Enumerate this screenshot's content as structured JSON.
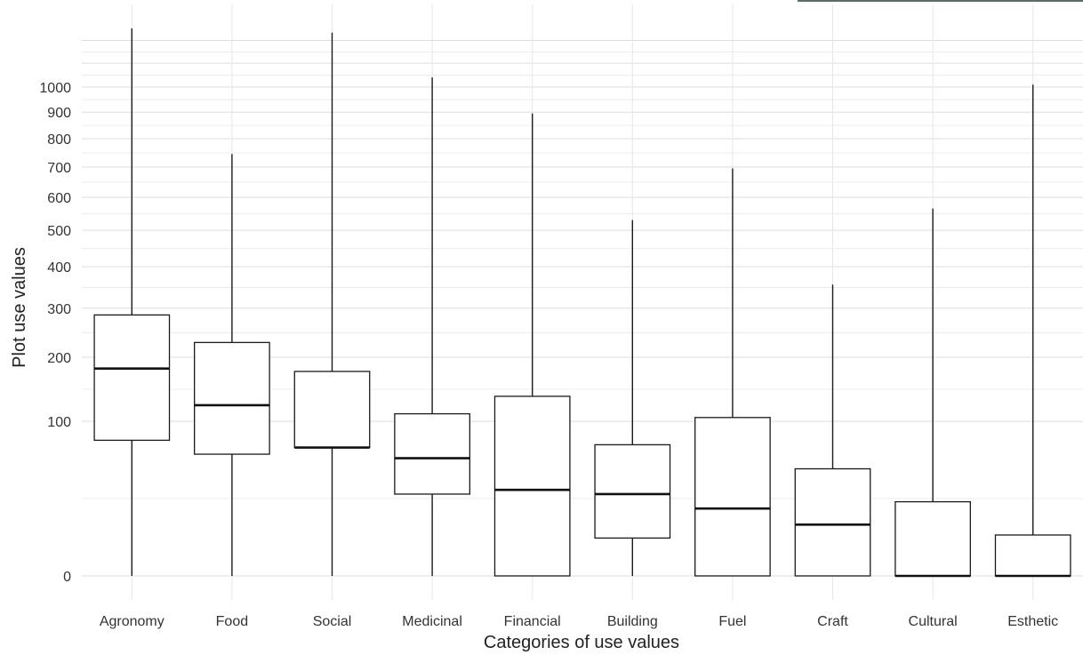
{
  "chart_data": {
    "type": "boxplot",
    "title": "",
    "xlabel": "Categories of use values",
    "ylabel": "Plot use values",
    "y_scale": "sqrt",
    "ylim": [
      0,
      1300
    ],
    "y_ticks": [
      0,
      100,
      200,
      300,
      400,
      500,
      600,
      700,
      800,
      900,
      1000
    ],
    "grid": true,
    "categories": [
      "Agronomy",
      "Food",
      "Social",
      "Medicinal",
      "Financial",
      "Building",
      "Fuel",
      "Craft",
      "Cultural",
      "Esthetic"
    ],
    "boxes": [
      {
        "category": "Agronomy",
        "min": 0,
        "q1": 77,
        "median": 180,
        "q3": 285,
        "max": 1255
      },
      {
        "category": "Food",
        "min": 0,
        "q1": 62,
        "median": 122,
        "q3": 228,
        "max": 745
      },
      {
        "category": "Social",
        "min": 0,
        "q1": 69,
        "median": 69,
        "q3": 175,
        "max": 1235
      },
      {
        "category": "Medicinal",
        "min": 0,
        "q1": 28,
        "median": 58,
        "q3": 110,
        "max": 1040
      },
      {
        "category": "Financial",
        "min": 0,
        "q1": 0,
        "median": 31,
        "q3": 135,
        "max": 895
      },
      {
        "category": "Building",
        "min": 0,
        "q1": 6,
        "median": 28,
        "q3": 72,
        "max": 530
      },
      {
        "category": "Fuel",
        "min": 0,
        "q1": 0,
        "median": 19,
        "q3": 105,
        "max": 695
      },
      {
        "category": "Craft",
        "min": 0,
        "q1": 0,
        "median": 11,
        "q3": 48,
        "max": 355
      },
      {
        "category": "Cultural",
        "min": 0,
        "q1": 0,
        "median": 0,
        "q3": 23,
        "max": 565
      },
      {
        "category": "Esthetic",
        "min": 0,
        "q1": 0,
        "median": 0,
        "q3": 7,
        "max": 1010
      }
    ]
  }
}
